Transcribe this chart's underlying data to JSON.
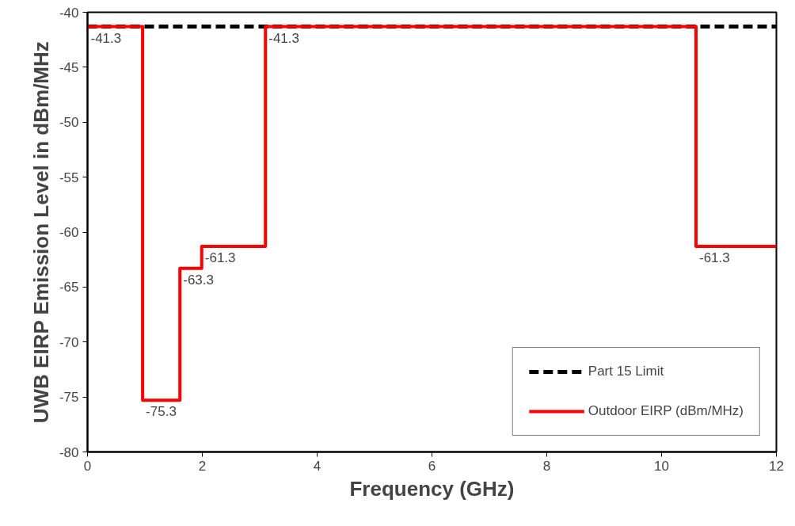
{
  "chart_data": {
    "type": "step",
    "xlabel": "Frequency (GHz)",
    "ylabel": "UWB EIRP Emission Level in dBm/MHz",
    "xlim": [
      0,
      12
    ],
    "ylim": [
      -80,
      -40
    ],
    "xticks": [
      0,
      2,
      4,
      6,
      8,
      10,
      12
    ],
    "yticks": [
      -80,
      -75,
      -70,
      -65,
      -60,
      -55,
      -50,
      -45,
      -40
    ],
    "grid": false,
    "legend": "bottom right",
    "series": [
      {
        "name": "Part 15 Limit",
        "color": "#000000",
        "type": "line",
        "line_style": "dashed",
        "x": [
          0,
          12
        ],
        "values": [
          -41.3,
          -41.3
        ]
      },
      {
        "name": "Outdoor EIRP (dBm/MHz)",
        "color": "#ff0000",
        "line_style": "solid",
        "x": [
          0,
          0.96,
          1.61,
          1.99,
          3.1,
          10.6,
          12
        ],
        "values": [
          -41.3,
          -75.3,
          -63.3,
          -61.3,
          -41.3,
          -61.3,
          -61.3
        ],
        "value_labels": [
          "-41.3",
          "-75.3",
          "-63.3",
          "-61.3",
          "-41.3",
          "-61.3",
          null
        ]
      }
    ]
  }
}
